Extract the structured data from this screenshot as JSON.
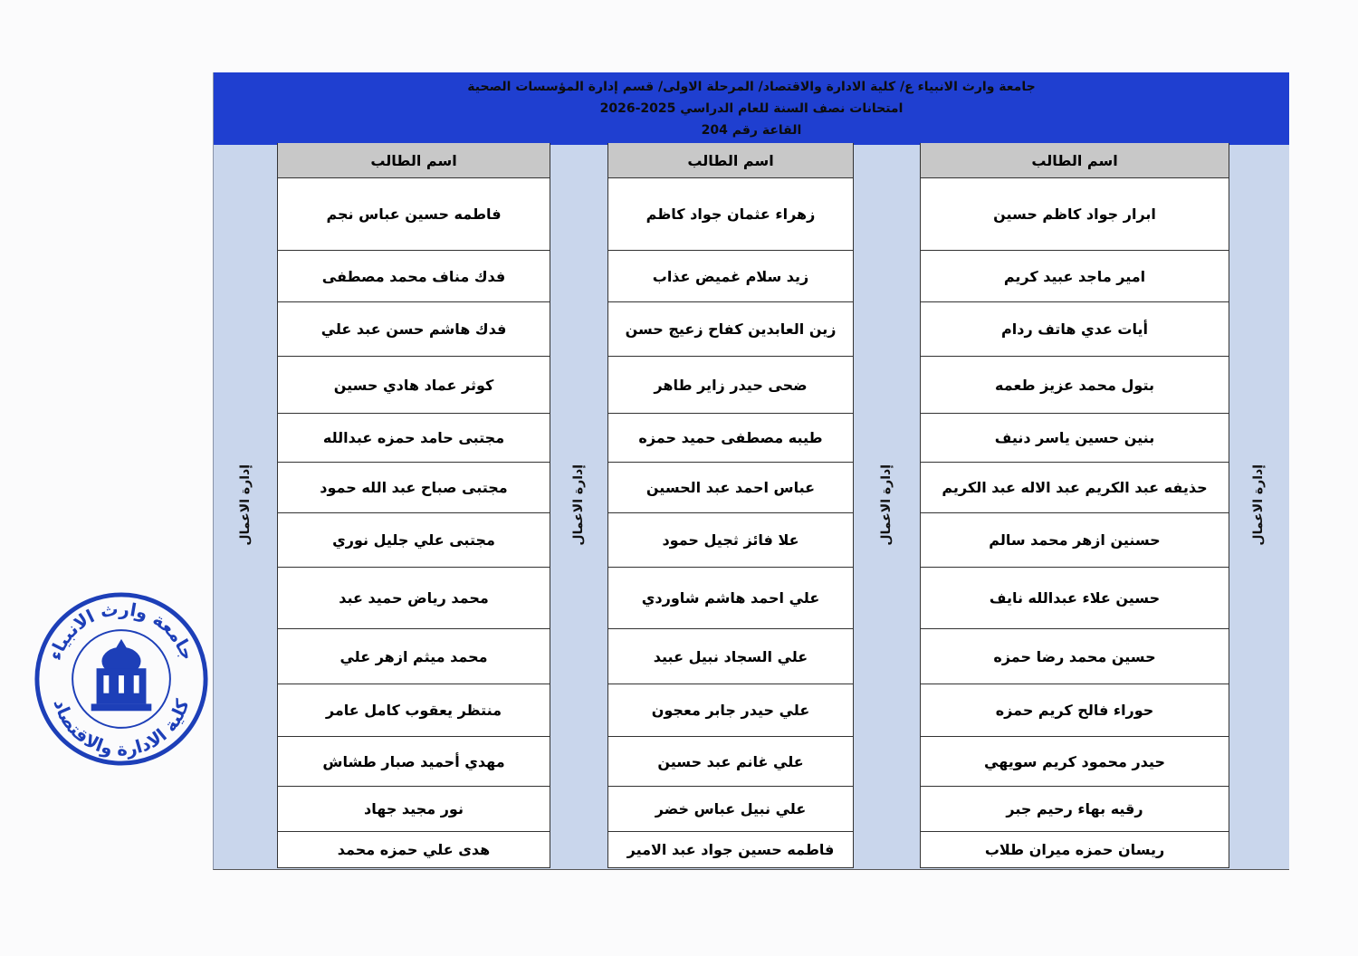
{
  "header": {
    "line1": "جامعة وارث الانبياء ع/ كلية الادارة والاقتصاد/ المرحلة الاولى/ قسم إدارة المؤسسات الصحية",
    "line2": "امتحانات نصف السنة للعام الدراسي 2025-2026",
    "line3": "القاعة رقم  204"
  },
  "column_header": "اسم الطالب",
  "side_label": "إدارة الاعمال",
  "columns": [
    {
      "students": [
        "ابرار جواد كاظم حسين",
        "امير ماجد عبيد كريم",
        "أيات عدي هاتف ردام",
        "بتول محمد عزيز طعمه",
        "بنين حسين ياسر دنيف",
        "حذيفه عبد الكريم عبد الاله عبد الكريم",
        "حسنين ازهر محمد سالم",
        "حسين علاء عبدالله نايف",
        "حسين محمد رضا حمزه",
        "حوراء فالح كريم حمزه",
        "حيدر محمود كريم سويهي",
        "رقيه بهاء رحيم جبر",
        "ريسان حمزه ميران طلاب"
      ]
    },
    {
      "students": [
        "زهراء عثمان جواد كاظم",
        "زيد سلام غميض عذاب",
        "زين العابدين كفاح زعيج حسن",
        "ضحى حيدر زاير طاهر",
        "طيبه مصطفى حميد حمزه",
        "عباس احمد عبد الحسين",
        "علا فائز ثجيل حمود",
        "علي احمد هاشم شاوردي",
        "علي السجاد نبيل عبيد",
        "علي حيدر جابر معجون",
        "علي غانم عبد حسين",
        "علي نبيل عباس خضر",
        "فاطمه حسين جواد عبد الامير"
      ]
    },
    {
      "students": [
        "فاطمه حسين عباس نجم",
        "فدك مناف محمد مصطفى",
        "فدك هاشم حسن عبد علي",
        "كوثر عماد هادي حسين",
        "مجتبى حامد حمزه عبدالله",
        "مجتبى صباح عبد الله حمود",
        "مجتبى علي جليل نوري",
        "محمد رياض حميد عبد",
        "محمد ميثم ازهر علي",
        "منتظر يعقوب كامل عامر",
        "مهدي أحميد صبار طشاش",
        "نور مجيد جهاد",
        "هدى علي حمزه محمد"
      ]
    }
  ],
  "stamp": {
    "top_text": "جامعة وارث الانبياء",
    "bottom_text": "كلية الادارة والاقتصاد",
    "color": "#1d3fb8"
  },
  "colors": {
    "banner": "#1f3fd0",
    "strip": "#c9d6ec",
    "header_cell": "#c8c8c8"
  }
}
